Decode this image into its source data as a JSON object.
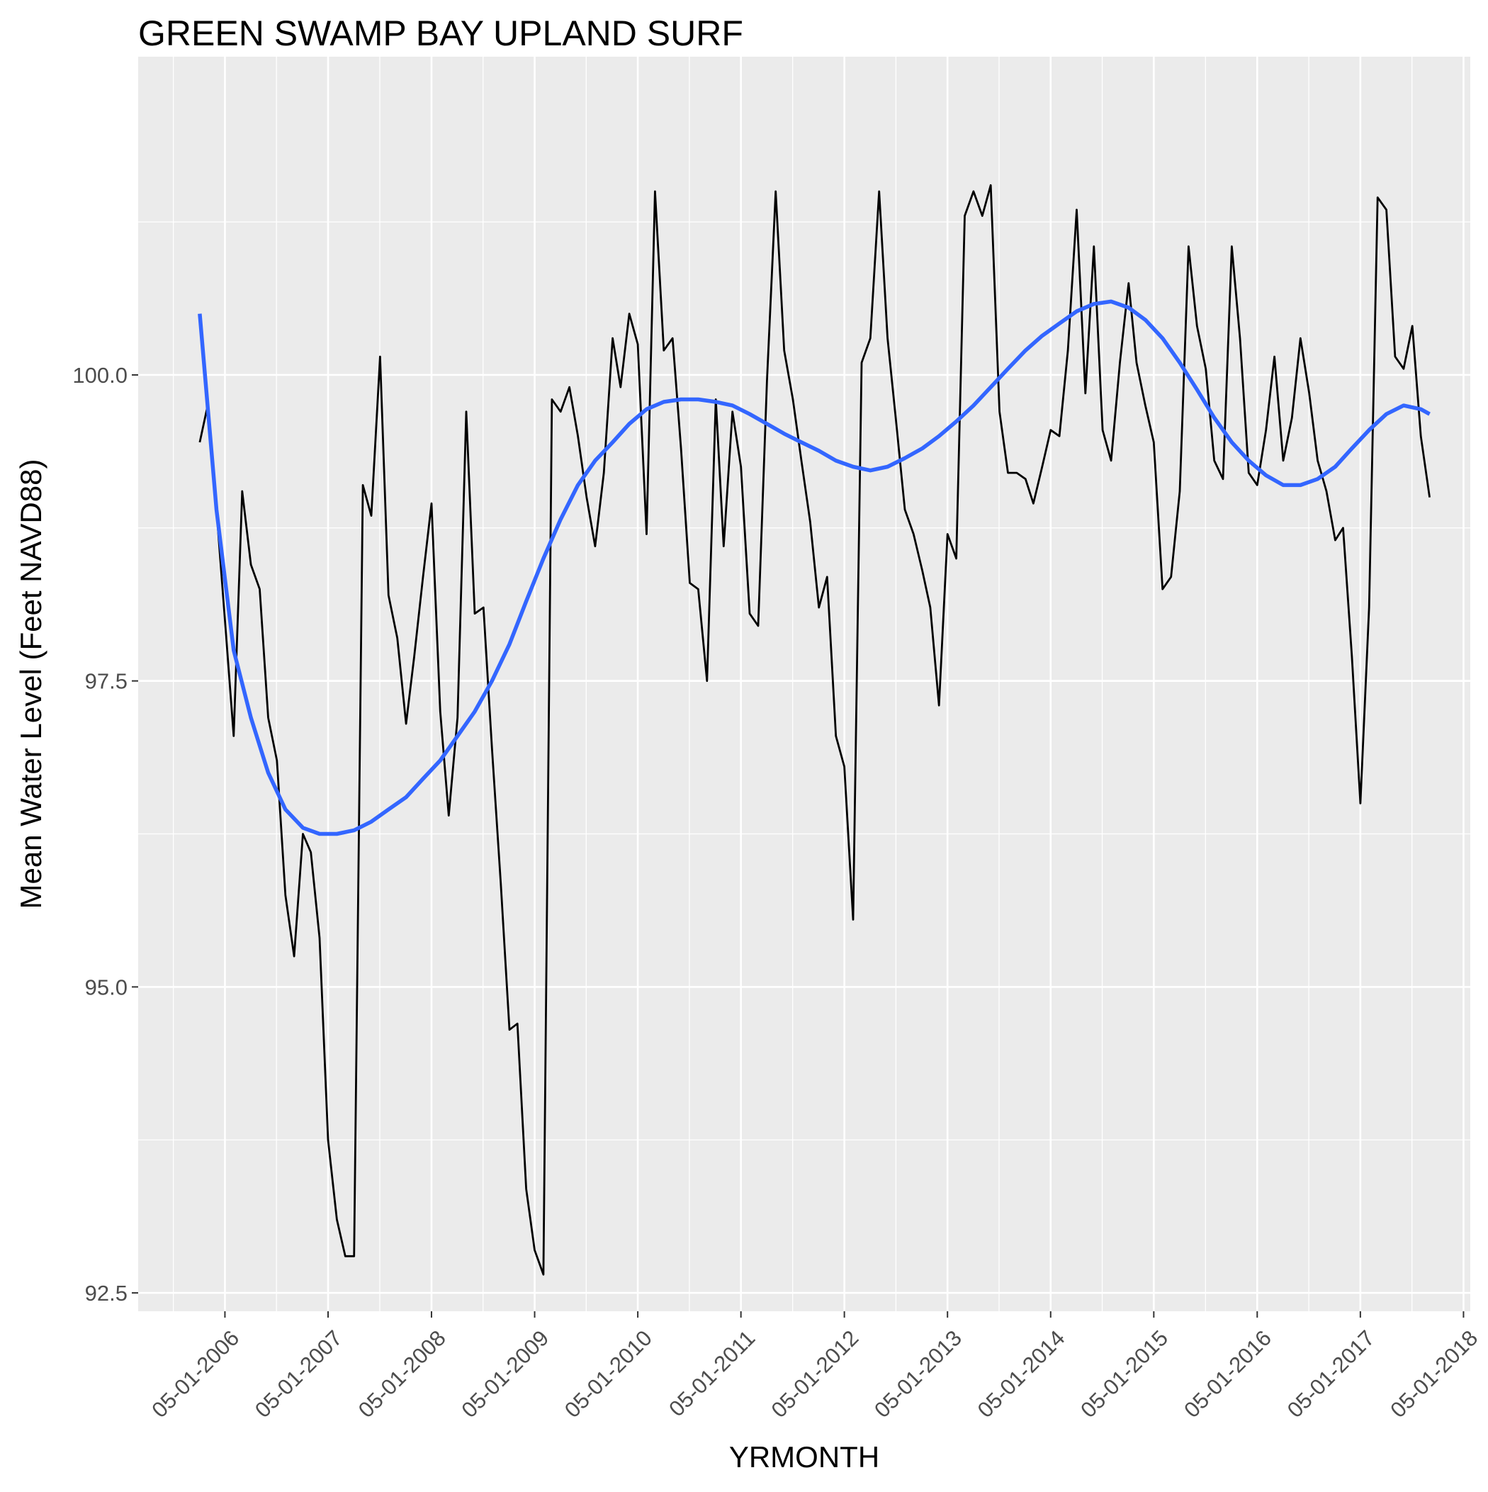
{
  "chart_data": {
    "type": "line",
    "title": "GREEN SWAMP BAY UPLAND SURF",
    "xlabel": "YRMONTH",
    "ylabel": "Mean Water Level (Feet NAVD88)",
    "ylim": [
      92.35,
      102.6
    ],
    "xlim": [
      "2005-06-28",
      "2018-05-25"
    ],
    "grid": true,
    "legend": "none",
    "x_ticks": [
      "05-01-2006",
      "05-01-2007",
      "05-01-2008",
      "05-01-2009",
      "05-01-2010",
      "05-01-2011",
      "05-01-2012",
      "05-01-2013",
      "05-01-2014",
      "05-01-2015",
      "05-01-2016",
      "05-01-2017",
      "05-01-2018"
    ],
    "y_ticks": [
      "92.5",
      "95.0",
      "97.5",
      "100.0"
    ],
    "colors": {
      "panel": "#ebebeb",
      "grid": "#ffffff",
      "series": "#000000",
      "smooth": "#3366ff"
    },
    "series": [
      {
        "style": "line",
        "color": "#000000",
        "x": [
          "2006-02-01",
          "2006-03-01",
          "2006-04-01",
          "2006-05-01",
          "2006-06-01",
          "2006-07-01",
          "2006-08-01",
          "2006-09-01",
          "2006-10-01",
          "2006-11-01",
          "2006-12-01",
          "2007-01-01",
          "2007-02-01",
          "2007-03-01",
          "2007-04-01",
          "2007-05-01",
          "2007-06-01",
          "2007-07-01",
          "2007-08-01",
          "2007-09-01",
          "2007-10-01",
          "2007-11-01",
          "2007-12-01",
          "2008-01-01",
          "2008-02-01",
          "2008-03-01",
          "2008-04-01",
          "2008-05-01",
          "2008-06-01",
          "2008-07-01",
          "2008-08-01",
          "2008-09-01",
          "2008-10-01",
          "2008-11-01",
          "2008-12-01",
          "2009-01-01",
          "2009-02-01",
          "2009-03-01",
          "2009-04-01",
          "2009-05-01",
          "2009-06-01",
          "2009-07-01",
          "2009-08-01",
          "2009-09-01",
          "2009-10-01",
          "2009-11-01",
          "2009-12-01",
          "2010-01-01",
          "2010-02-01",
          "2010-03-01",
          "2010-04-01",
          "2010-05-01",
          "2010-06-01",
          "2010-07-01",
          "2010-08-01",
          "2010-09-01",
          "2010-10-01",
          "2010-11-01",
          "2010-12-01",
          "2011-01-01",
          "2011-02-01",
          "2011-03-01",
          "2011-04-01",
          "2011-05-01",
          "2011-06-01",
          "2011-07-01",
          "2011-08-01",
          "2011-09-01",
          "2011-10-01",
          "2011-11-01",
          "2011-12-01",
          "2012-01-01",
          "2012-02-01",
          "2012-03-01",
          "2012-04-01",
          "2012-05-01",
          "2012-06-01",
          "2012-07-01",
          "2012-08-01",
          "2012-09-01",
          "2012-10-01",
          "2012-11-01",
          "2012-12-01",
          "2013-01-01",
          "2013-02-01",
          "2013-03-01",
          "2013-04-01",
          "2013-05-01",
          "2013-06-01",
          "2013-07-01",
          "2013-08-01",
          "2013-09-01",
          "2013-10-01",
          "2013-11-01",
          "2013-12-01",
          "2014-01-01",
          "2014-02-01",
          "2014-03-01",
          "2014-04-01",
          "2014-05-01",
          "2014-06-01",
          "2014-07-01",
          "2014-08-01",
          "2014-09-01",
          "2014-10-01",
          "2014-11-01",
          "2014-12-01",
          "2015-01-01",
          "2015-02-01",
          "2015-03-01",
          "2015-04-01",
          "2015-05-01",
          "2015-06-01",
          "2015-07-01",
          "2015-08-01",
          "2015-09-01",
          "2015-10-01",
          "2015-11-01",
          "2015-12-01",
          "2016-01-01",
          "2016-02-01",
          "2016-03-01",
          "2016-04-01",
          "2016-05-01",
          "2016-06-01",
          "2016-07-01",
          "2016-08-01",
          "2016-09-01",
          "2016-10-01",
          "2016-11-01",
          "2016-12-01",
          "2017-01-01",
          "2017-02-01",
          "2017-03-01",
          "2017-04-01",
          "2017-05-01",
          "2017-06-01",
          "2017-07-01",
          "2017-08-01",
          "2017-09-01",
          "2017-10-01",
          "2017-11-01",
          "2017-12-01",
          "2018-01-01"
        ],
        "values": [
          99.45,
          99.75,
          98.9,
          98.0,
          97.05,
          99.05,
          98.45,
          98.25,
          97.2,
          96.85,
          95.75,
          95.25,
          96.25,
          96.1,
          95.4,
          93.75,
          93.1,
          92.8,
          92.8,
          99.1,
          98.85,
          100.15,
          98.2,
          97.85,
          97.15,
          97.7,
          98.35,
          98.95,
          97.25,
          96.4,
          97.2,
          99.7,
          98.05,
          98.1,
          96.95,
          95.85,
          94.65,
          94.7,
          93.35,
          92.85,
          92.65,
          99.8,
          99.7,
          99.9,
          99.5,
          99.0,
          98.6,
          99.2,
          100.3,
          99.9,
          100.5,
          100.25,
          98.7,
          101.5,
          100.2,
          100.3,
          99.4,
          98.3,
          98.25,
          97.5,
          99.8,
          98.6,
          99.7,
          99.25,
          98.05,
          97.95,
          99.95,
          101.5,
          100.2,
          99.8,
          99.3,
          98.8,
          98.1,
          98.35,
          97.05,
          96.8,
          95.55,
          100.1,
          100.3,
          101.5,
          100.3,
          99.6,
          98.9,
          98.7,
          98.4,
          98.1,
          97.3,
          98.7,
          98.5,
          101.3,
          101.5,
          101.3,
          101.55,
          99.7,
          99.2,
          99.2,
          99.15,
          98.95,
          99.25,
          99.55,
          99.5,
          100.2,
          101.35,
          99.85,
          101.05,
          99.55,
          99.3,
          100.1,
          100.75,
          100.1,
          99.75,
          99.45,
          98.25,
          98.35,
          99.05,
          101.05,
          100.4,
          100.05,
          99.3,
          99.15,
          101.05,
          100.3,
          99.2,
          99.1,
          99.55,
          100.15,
          99.3,
          99.65,
          100.3,
          99.85,
          99.3,
          99.05,
          98.65,
          98.75,
          97.7,
          96.5,
          98.1,
          101.45,
          101.35,
          100.15,
          100.05,
          100.4,
          99.5,
          99.0
        ]
      },
      {
        "style": "smooth",
        "color": "#3366ff",
        "x": [
          "2006-02-01",
          "2006-04-01",
          "2006-06-01",
          "2006-08-01",
          "2006-10-01",
          "2006-12-01",
          "2007-02-01",
          "2007-04-01",
          "2007-06-01",
          "2007-08-01",
          "2007-10-01",
          "2007-12-01",
          "2008-02-01",
          "2008-04-01",
          "2008-06-01",
          "2008-08-01",
          "2008-10-01",
          "2008-12-01",
          "2009-02-01",
          "2009-04-01",
          "2009-06-01",
          "2009-08-01",
          "2009-10-01",
          "2009-12-01",
          "2010-02-01",
          "2010-04-01",
          "2010-06-01",
          "2010-08-01",
          "2010-10-01",
          "2010-12-01",
          "2011-02-01",
          "2011-04-01",
          "2011-06-01",
          "2011-08-01",
          "2011-10-01",
          "2011-12-01",
          "2012-02-01",
          "2012-04-01",
          "2012-06-01",
          "2012-08-01",
          "2012-10-01",
          "2012-12-01",
          "2013-02-01",
          "2013-04-01",
          "2013-06-01",
          "2013-08-01",
          "2013-10-01",
          "2013-12-01",
          "2014-02-01",
          "2014-04-01",
          "2014-06-01",
          "2014-08-01",
          "2014-10-01",
          "2014-12-01",
          "2015-02-01",
          "2015-04-01",
          "2015-06-01",
          "2015-08-01",
          "2015-10-01",
          "2015-12-01",
          "2016-02-01",
          "2016-04-01",
          "2016-06-01",
          "2016-08-01",
          "2016-10-01",
          "2016-12-01",
          "2017-02-01",
          "2017-04-01",
          "2017-06-01",
          "2017-08-01",
          "2017-10-01",
          "2017-12-01",
          "2018-01-01"
        ],
        "values": [
          100.5,
          98.9,
          97.75,
          97.2,
          96.75,
          96.45,
          96.3,
          96.25,
          96.25,
          96.28,
          96.35,
          96.45,
          96.55,
          96.7,
          96.85,
          97.05,
          97.25,
          97.5,
          97.8,
          98.15,
          98.5,
          98.82,
          99.1,
          99.3,
          99.45,
          99.6,
          99.72,
          99.78,
          99.8,
          99.8,
          99.78,
          99.75,
          99.68,
          99.6,
          99.52,
          99.45,
          99.38,
          99.3,
          99.25,
          99.22,
          99.25,
          99.32,
          99.4,
          99.5,
          99.62,
          99.75,
          99.9,
          100.05,
          100.2,
          100.32,
          100.42,
          100.52,
          100.58,
          100.6,
          100.55,
          100.45,
          100.3,
          100.1,
          99.88,
          99.65,
          99.45,
          99.3,
          99.18,
          99.1,
          99.1,
          99.15,
          99.25,
          99.4,
          99.55,
          99.68,
          99.75,
          99.72,
          99.68
        ]
      }
    ]
  }
}
